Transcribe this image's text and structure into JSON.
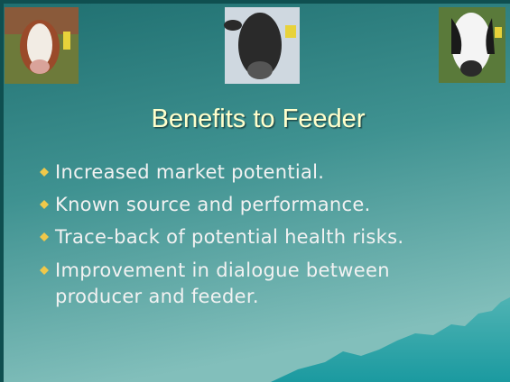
{
  "title": "Benefits to Feeder",
  "bullets": [
    "Increased market potential.",
    "Known source and performance.",
    "Trace-back of potential health risks.",
    "Improvement in dialogue between",
    "producer and feeder."
  ]
}
